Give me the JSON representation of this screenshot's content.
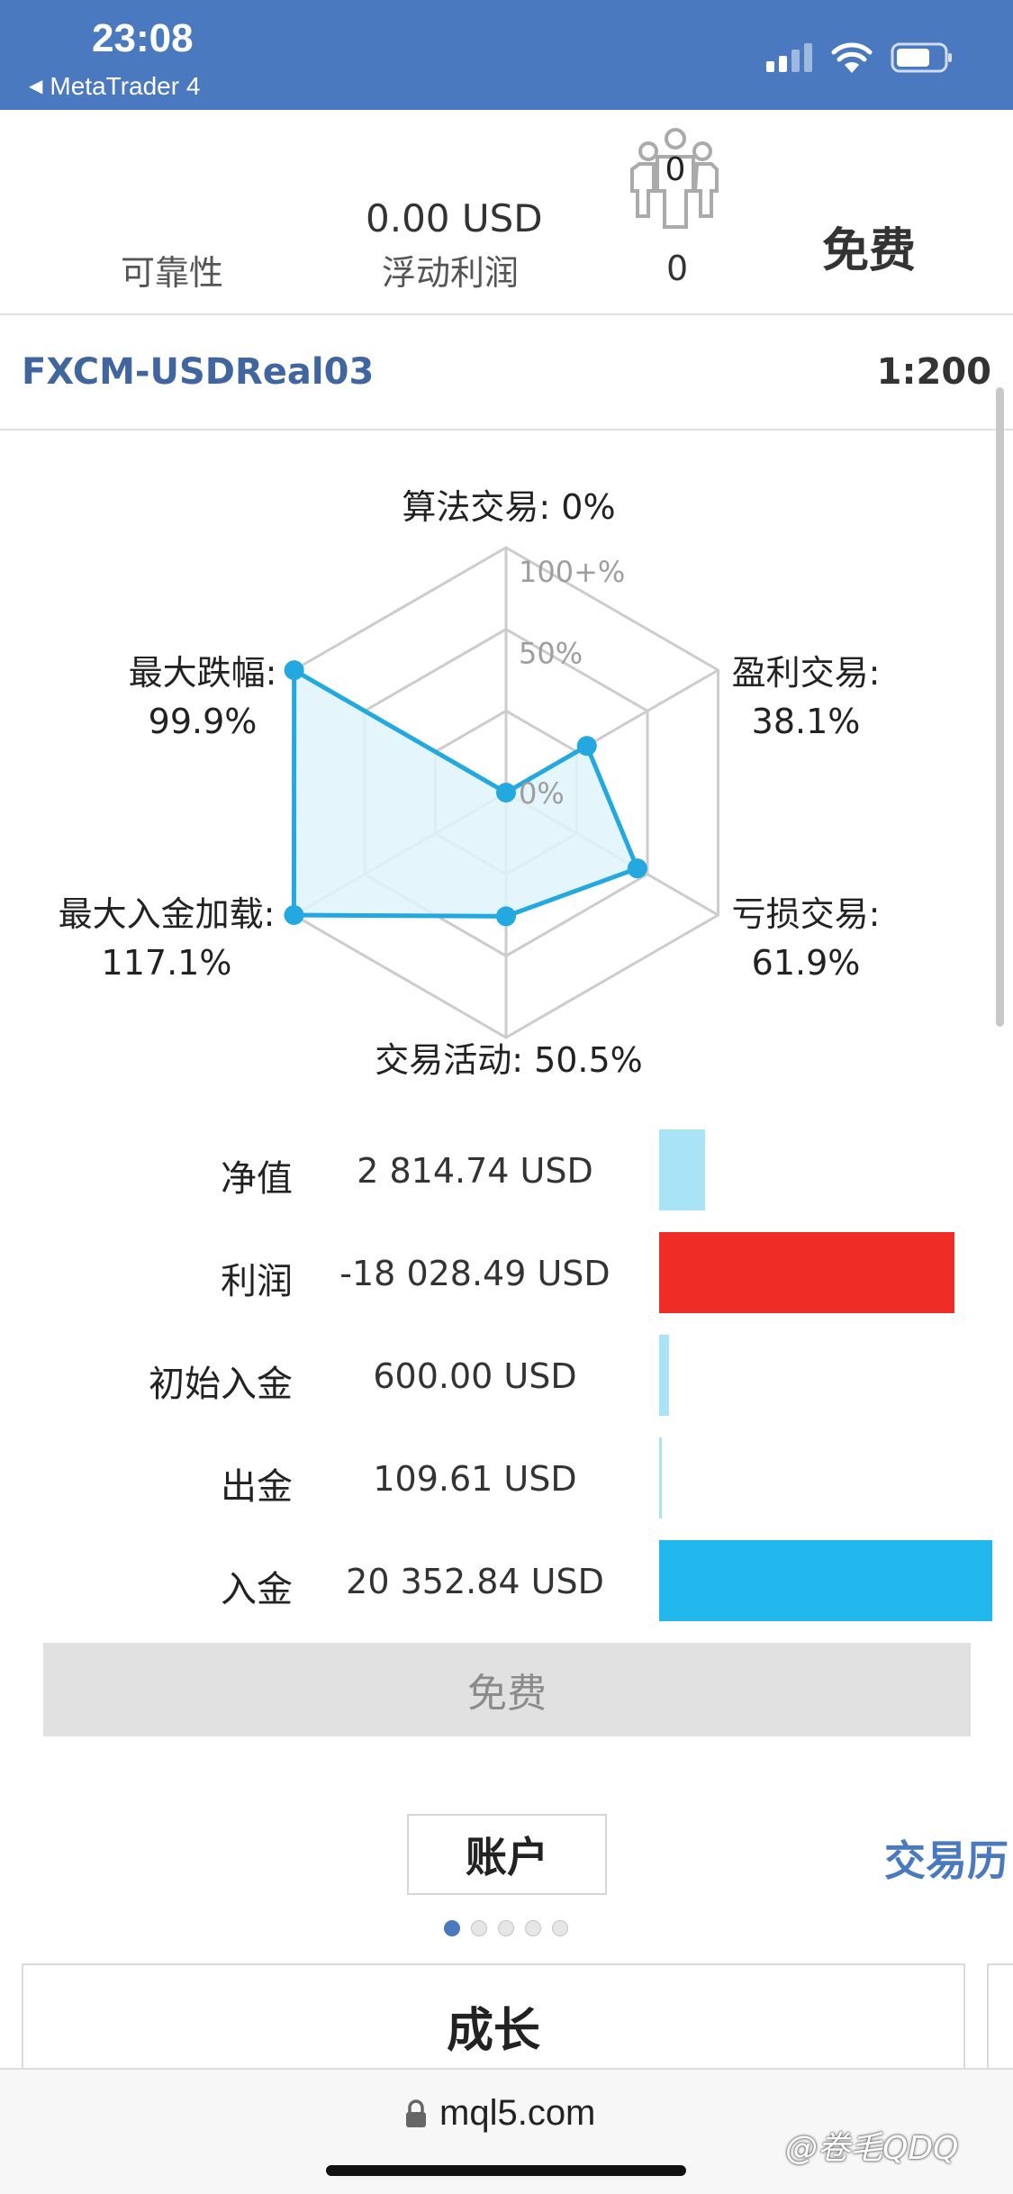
{
  "status_bar": {
    "time": "23:08",
    "back_app": "MetaTrader 4",
    "icons": [
      "signal-icon",
      "wifi-icon",
      "battery-icon"
    ]
  },
  "header": {
    "reliability_label": "可靠性",
    "floating_profit_value": "0.00 USD",
    "floating_profit_label": "浮动利润",
    "subscribers_icon_count": "0",
    "subscribers_count": "0",
    "price": "免费"
  },
  "account": {
    "server": "FXCM-USDReal03",
    "leverage": "1:200"
  },
  "chart_data": {
    "type": "radar",
    "ring_labels": [
      "100+%",
      "50%",
      "0%"
    ],
    "axes": [
      {
        "name": "算法交易",
        "value": 0,
        "label": "算法交易: 0%"
      },
      {
        "name": "盈利交易",
        "value": 38.1,
        "label_name": "盈利交易:",
        "label_value": "38.1%"
      },
      {
        "name": "亏损交易",
        "value": 61.9,
        "label_name": "亏损交易:",
        "label_value": "61.9%"
      },
      {
        "name": "交易活动",
        "value": 50.5,
        "label": "交易活动: 50.5%"
      },
      {
        "name": "最大入金加载",
        "value": 117.1,
        "label_name": "最大入金加载:",
        "label_value": "117.1%"
      },
      {
        "name": "最大跌幅",
        "value": 99.9,
        "label_name": "最大跌幅:",
        "label_value": "99.9%"
      }
    ],
    "max_display": 100,
    "colors": {
      "line": "#24a8e0",
      "fill": "#dff3fb",
      "grid": "#cccccc"
    }
  },
  "balances": [
    {
      "label": "净值",
      "value": "2 814.74 USD",
      "amount": 2814.74,
      "color": "#a8e3f6"
    },
    {
      "label": "利润",
      "value": "-18 028.49 USD",
      "amount": 18028.49,
      "color": "#ef2d26"
    },
    {
      "label": "初始入金",
      "value": "600.00 USD",
      "amount": 600.0,
      "color": "#a8e3f6"
    },
    {
      "label": "出金",
      "value": "109.61 USD",
      "amount": 109.61,
      "color": "#a8e3f6"
    },
    {
      "label": "入金",
      "value": "20 352.84 USD",
      "amount": 20352.84,
      "color": "#22b8ee"
    }
  ],
  "free_button": "免费",
  "tabs": {
    "account": "账户",
    "history": "交易历"
  },
  "card_title": "成长",
  "browser": {
    "url": "mql5.com"
  },
  "watermark": "@卷毛QDQ"
}
